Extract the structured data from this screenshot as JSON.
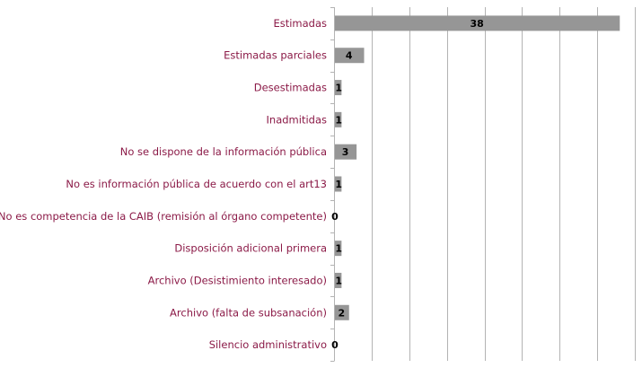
{
  "chart_data": {
    "type": "bar",
    "orientation": "horizontal",
    "categories": [
      "Estimadas",
      "Estimadas parciales",
      "Desestimadas",
      "Inadmitidas",
      "No se dispone de la información pública",
      "No es información pública de acuerdo con el art13",
      "No es competencia de la CAIB (remisión al órgano competente)",
      "Disposición adicional primera",
      "Archivo (Desistimiento interesado)",
      "Archivo (falta de subsanación)",
      "Silencio administrativo"
    ],
    "values": [
      38,
      4,
      1,
      1,
      3,
      1,
      0,
      1,
      1,
      2,
      0
    ],
    "xlim": [
      0,
      40
    ],
    "grid": true,
    "legend": "none",
    "colors": {
      "bar": "#969696",
      "grid": "#b3b3b3",
      "category_label": "#8b1a47",
      "value_label": "#000000"
    }
  }
}
